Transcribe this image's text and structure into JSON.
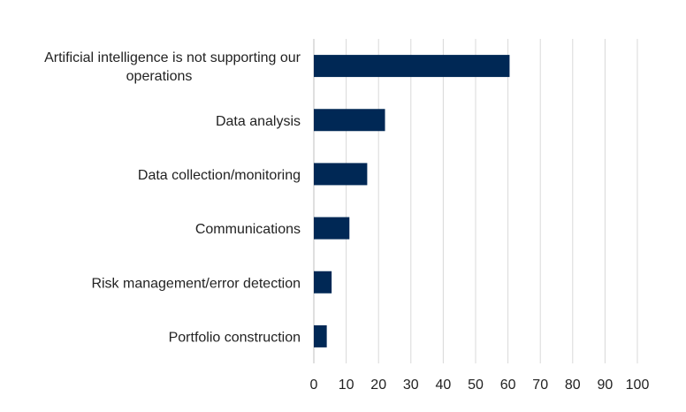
{
  "chart_data": {
    "type": "bar",
    "orientation": "horizontal",
    "title": "",
    "xlabel": "",
    "ylabel": "",
    "categories": [
      [
        "Artificial intelligence is not supporting our",
        "operations"
      ],
      [
        "Data analysis"
      ],
      [
        "Data collection/monitoring"
      ],
      [
        "Communications"
      ],
      [
        "Risk management/error detection"
      ],
      [
        "Portfolio construction"
      ]
    ],
    "values": [
      60.5,
      22,
      16.5,
      11,
      5.5,
      4
    ],
    "xlim": [
      0,
      100
    ],
    "xticks": [
      "0",
      "10",
      "20",
      "30",
      "40",
      "50",
      "60",
      "70",
      "80",
      "90",
      "100"
    ],
    "grid": "vertical",
    "legend": "none",
    "bar_color": "#002855",
    "grid_color": "#d9d9d9"
  }
}
